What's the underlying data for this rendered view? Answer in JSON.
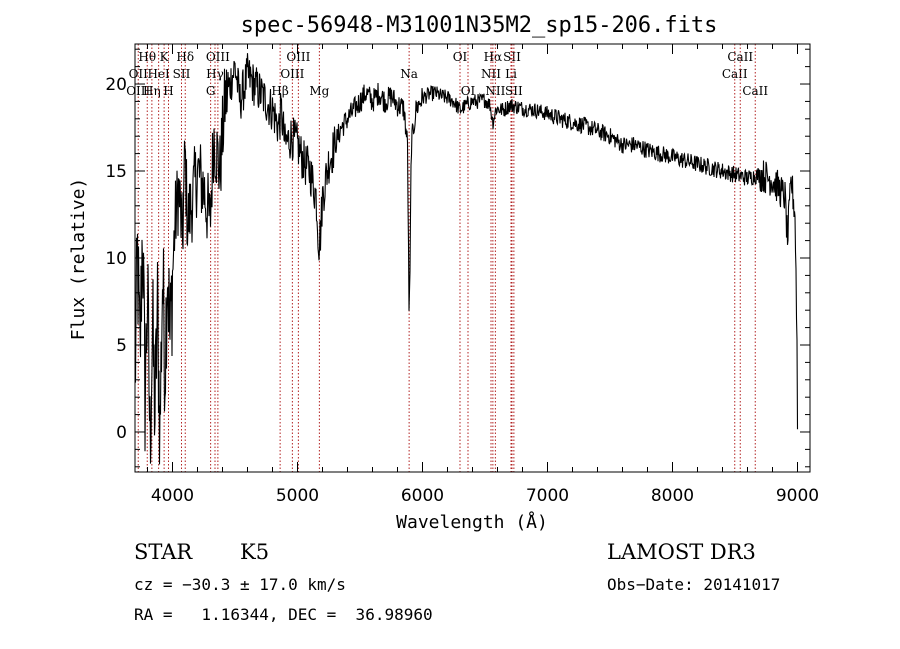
{
  "chart_data": {
    "type": "line",
    "title": "spec-56948-M31001N35M2_sp15-206.fits",
    "xlabel": "Wavelength (Å)",
    "ylabel": "Flux (relative)",
    "xlim": [
      3700,
      9100
    ],
    "ylim": [
      -2.3,
      22.3
    ],
    "xticks": [
      4000,
      5000,
      6000,
      7000,
      8000,
      9000
    ],
    "yticks": [
      0,
      5,
      10,
      15,
      20
    ],
    "line_color": "#000000",
    "marker_color": "#b22222",
    "spectrum_anchors": [
      [
        3700,
        3
      ],
      [
        3720,
        10
      ],
      [
        3740,
        4
      ],
      [
        3760,
        12
      ],
      [
        3780,
        2
      ],
      [
        3800,
        8
      ],
      [
        3820,
        -0.5
      ],
      [
        3840,
        6
      ],
      [
        3860,
        1
      ],
      [
        3880,
        7
      ],
      [
        3900,
        0
      ],
      [
        3920,
        9
      ],
      [
        3940,
        4
      ],
      [
        3960,
        10
      ],
      [
        3980,
        5
      ],
      [
        4000,
        9
      ],
      [
        4020,
        12
      ],
      [
        4050,
        14
      ],
      [
        4080,
        11
      ],
      [
        4100,
        16
      ],
      [
        4120,
        12
      ],
      [
        4150,
        13
      ],
      [
        4200,
        15
      ],
      [
        4250,
        14
      ],
      [
        4300,
        12
      ],
      [
        4330,
        17
      ],
      [
        4380,
        15
      ],
      [
        4420,
        19
      ],
      [
        4460,
        20
      ],
      [
        4500,
        21
      ],
      [
        4540,
        19
      ],
      [
        4600,
        20.5
      ],
      [
        4650,
        20
      ],
      [
        4700,
        19.5
      ],
      [
        4750,
        19
      ],
      [
        4800,
        18.5
      ],
      [
        4850,
        17.5
      ],
      [
        4870,
        18.5
      ],
      [
        4900,
        16.5
      ],
      [
        4950,
        17
      ],
      [
        5000,
        16.5
      ],
      [
        5050,
        15.5
      ],
      [
        5100,
        15
      ],
      [
        5150,
        13.5
      ],
      [
        5170,
        10.8
      ],
      [
        5185,
        11.5
      ],
      [
        5200,
        13.5
      ],
      [
        5250,
        15.5
      ],
      [
        5300,
        16.5
      ],
      [
        5350,
        17.5
      ],
      [
        5400,
        18
      ],
      [
        5450,
        18.5
      ],
      [
        5500,
        19
      ],
      [
        5550,
        19.5
      ],
      [
        5600,
        19
      ],
      [
        5650,
        19.5
      ],
      [
        5700,
        19
      ],
      [
        5750,
        19.3
      ],
      [
        5800,
        18.8
      ],
      [
        5850,
        18.6
      ],
      [
        5880,
        16.5
      ],
      [
        5893,
        6.5
      ],
      [
        5900,
        9
      ],
      [
        5910,
        16.5
      ],
      [
        5950,
        18.6
      ],
      [
        6000,
        19.2
      ],
      [
        6050,
        19.4
      ],
      [
        6100,
        19.5
      ],
      [
        6150,
        19.3
      ],
      [
        6200,
        19.2
      ],
      [
        6250,
        19
      ],
      [
        6300,
        18.5
      ],
      [
        6350,
        18.8
      ],
      [
        6400,
        19
      ],
      [
        6450,
        19
      ],
      [
        6500,
        19.1
      ],
      [
        6540,
        18.8
      ],
      [
        6563,
        17.8
      ],
      [
        6590,
        18.6
      ],
      [
        6650,
        18.5
      ],
      [
        6700,
        18.8
      ],
      [
        6750,
        18.7
      ],
      [
        6800,
        18.6
      ],
      [
        6900,
        18.5
      ],
      [
        7000,
        18.3
      ],
      [
        7100,
        18
      ],
      [
        7200,
        17.8
      ],
      [
        7300,
        17.6
      ],
      [
        7400,
        17.3
      ],
      [
        7500,
        17
      ],
      [
        7600,
        16.5
      ],
      [
        7700,
        16.5
      ],
      [
        7800,
        16.2
      ],
      [
        7900,
        16
      ],
      [
        8000,
        15.8
      ],
      [
        8100,
        15.6
      ],
      [
        8200,
        15.4
      ],
      [
        8300,
        15.2
      ],
      [
        8400,
        15
      ],
      [
        8500,
        14.8
      ],
      [
        8600,
        14.6
      ],
      [
        8700,
        14.8
      ],
      [
        8800,
        14.5
      ],
      [
        8850,
        14
      ],
      [
        8900,
        13.5
      ],
      [
        8920,
        11
      ],
      [
        8950,
        14.5
      ],
      [
        8980,
        12.5
      ],
      [
        8995,
        6
      ],
      [
        9000,
        0.5
      ]
    ],
    "line_markers": [
      {
        "wl": 3726,
        "labels": [
          {
            "text": "OII",
            "row": 1
          },
          {
            "text": "OIII",
            "row": 2
          }
        ]
      },
      {
        "wl": 3798,
        "labels": [
          {
            "text": "Hθ",
            "row": 0
          }
        ]
      },
      {
        "wl": 3835,
        "labels": [
          {
            "text": "Hη",
            "row": 2
          }
        ]
      },
      {
        "wl": 3889,
        "labels": [
          {
            "text": "HeI",
            "row": 1
          }
        ]
      },
      {
        "wl": 3933,
        "labels": [
          {
            "text": "K",
            "row": 0
          }
        ]
      },
      {
        "wl": 3968,
        "labels": [
          {
            "text": "H",
            "row": 2
          }
        ]
      },
      {
        "wl": 4072,
        "labels": [
          {
            "text": "SII",
            "row": 1
          }
        ]
      },
      {
        "wl": 4102,
        "labels": [
          {
            "text": "Hδ",
            "row": 0
          }
        ]
      },
      {
        "wl": 4305,
        "labels": [
          {
            "text": "G",
            "row": 2
          }
        ]
      },
      {
        "wl": 4340,
        "labels": [
          {
            "text": "Hγ",
            "row": 1
          }
        ]
      },
      {
        "wl": 4363,
        "labels": [
          {
            "text": "OIII",
            "row": 0
          }
        ]
      },
      {
        "wl": 4861,
        "labels": [
          {
            "text": "Hβ",
            "row": 2
          }
        ]
      },
      {
        "wl": 4959,
        "labels": [
          {
            "text": "OIII",
            "row": 1
          }
        ]
      },
      {
        "wl": 5007,
        "labels": [
          {
            "text": "OIII",
            "row": 0
          }
        ]
      },
      {
        "wl": 5175,
        "labels": [
          {
            "text": "Mg",
            "row": 2
          }
        ]
      },
      {
        "wl": 5893,
        "labels": [
          {
            "text": "Na",
            "row": 1
          }
        ]
      },
      {
        "wl": 6300,
        "labels": [
          {
            "text": "OI",
            "row": 0
          }
        ]
      },
      {
        "wl": 6364,
        "labels": [
          {
            "text": "OI",
            "row": 2
          }
        ]
      },
      {
        "wl": 6548,
        "labels": [
          {
            "text": "NII",
            "row": 1
          }
        ]
      },
      {
        "wl": 6563,
        "labels": [
          {
            "text": "Hα",
            "row": 0
          }
        ]
      },
      {
        "wl": 6583,
        "labels": [
          {
            "text": "NII",
            "row": 2
          }
        ]
      },
      {
        "wl": 6708,
        "labels": [
          {
            "text": "Li",
            "row": 1
          }
        ]
      },
      {
        "wl": 6716,
        "labels": [
          {
            "text": "SII",
            "row": 0
          }
        ]
      },
      {
        "wl": 6731,
        "labels": [
          {
            "text": "SII",
            "row": 2
          }
        ]
      },
      {
        "wl": 8498,
        "labels": [
          {
            "text": "CaII",
            "row": 1
          }
        ]
      },
      {
        "wl": 8542,
        "labels": [
          {
            "text": "CaII",
            "row": 0
          }
        ]
      },
      {
        "wl": 8662,
        "labels": [
          {
            "text": "CaII",
            "row": 2
          }
        ]
      }
    ]
  },
  "info": {
    "object_class": "STAR",
    "subclass": "K5",
    "survey": "LAMOST DR3",
    "cz": "cz = −30.3 ± 17.0 km/s",
    "obs_date": "Obs−Date: 20141017",
    "coords": "RA =   1.16344, DEC =  36.98960"
  }
}
